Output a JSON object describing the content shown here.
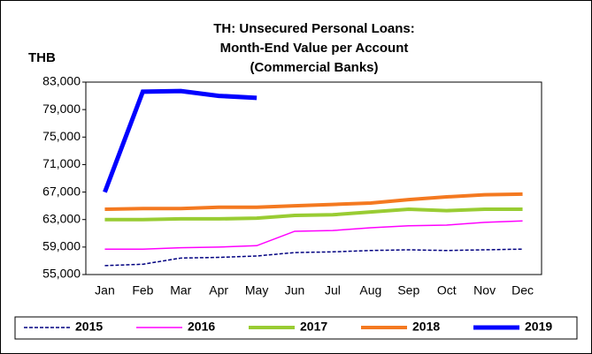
{
  "chart_data": {
    "type": "line",
    "title": [
      "TH: Unsecured Personal Loans:",
      "Month-End Value per Account",
      "(Commercial Banks)"
    ],
    "y_label": "THB",
    "categories": [
      "Jan",
      "Feb",
      "Mar",
      "Apr",
      "May",
      "Jun",
      "Jul",
      "Aug",
      "Sep",
      "Oct",
      "Nov",
      "Dec"
    ],
    "series": [
      {
        "name": "2015",
        "color": "#000080",
        "line_style": "dashed",
        "values": [
          56300,
          56500,
          57400,
          57500,
          57700,
          58200,
          58300,
          58500,
          58600,
          58500,
          58600,
          58700
        ]
      },
      {
        "name": "2016",
        "color": "#ff00ff",
        "line_style": "solid",
        "values": [
          58700,
          58700,
          58900,
          59000,
          59200,
          61300,
          61400,
          61800,
          62100,
          62200,
          62600,
          62800
        ]
      },
      {
        "name": "2017",
        "color": "#99cc33",
        "line_style": "solid",
        "values": [
          63000,
          63000,
          63100,
          63100,
          63200,
          63600,
          63700,
          64100,
          64500,
          64300,
          64500,
          64500
        ]
      },
      {
        "name": "2018",
        "color": "#f47920",
        "line_style": "solid",
        "values": [
          64500,
          64600,
          64600,
          64800,
          64800,
          65000,
          65200,
          65400,
          65900,
          66300,
          66600,
          66700
        ]
      },
      {
        "name": "2019",
        "color": "#0000ff",
        "line_style": "solid",
        "values": [
          67000,
          81600,
          81700,
          81000,
          80700,
          null,
          null,
          null,
          null,
          null,
          null,
          null
        ]
      }
    ],
    "ylim": [
      55000,
      83000
    ],
    "yticks": [
      {
        "value": 55000,
        "label": "55,000"
      },
      {
        "value": 59000,
        "label": "59,000"
      },
      {
        "value": 63000,
        "label": "63,000"
      },
      {
        "value": 67000,
        "label": "67,000"
      },
      {
        "value": 71000,
        "label": "71,000"
      },
      {
        "value": 75000,
        "label": "75,000"
      },
      {
        "value": 79000,
        "label": "79,000"
      },
      {
        "value": 83000,
        "label": "83,000"
      }
    ],
    "legend": "bottom"
  }
}
